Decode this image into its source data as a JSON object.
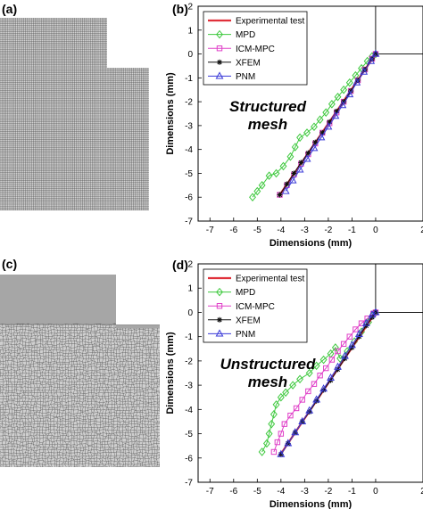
{
  "panel_labels": [
    "(a)",
    "(b)",
    "(c)",
    "(d)"
  ],
  "mesh_panels": [
    {
      "panel": "(a)",
      "type": "structured"
    },
    {
      "panel": "(c)",
      "type": "unstructured"
    }
  ],
  "colors": {
    "experimental": "#e0303a",
    "mpd": "#3fc93f",
    "icm_mpc": "#e040c8",
    "xfem": "#111111",
    "pnm": "#3a3ad8",
    "mesh_line": "#444444",
    "mesh_fill": "#c8c8c8"
  },
  "chart_data": [
    {
      "panel": "(b)",
      "type": "line",
      "annotation": "Structured mesh",
      "xlabel": "Dimensions (mm)",
      "ylabel": "Dimensions (mm)",
      "xlim": [
        -7.5,
        2
      ],
      "ylim": [
        -7,
        2
      ],
      "xticks": [
        "-7",
        "-6",
        "-5",
        "-4",
        "-3",
        "-2",
        "-1",
        "0",
        "2"
      ],
      "yticks": [
        "2",
        "1",
        "0",
        "-1",
        "-2",
        "-3",
        "-4",
        "-5",
        "-6",
        "-7"
      ],
      "legend_position": "top-left",
      "grid": false,
      "geometry_outline": {
        "x": [
          0,
          0,
          2
        ],
        "y": [
          2,
          0,
          0
        ]
      },
      "series": [
        {
          "name": "Experimental test",
          "marker": "none",
          "x": [
            -4.05,
            0.0
          ],
          "y": [
            -5.9,
            0.0
          ]
        },
        {
          "name": "MPD",
          "marker": "diamond",
          "x": [
            -5.2,
            -5.0,
            -4.8,
            -4.5,
            -4.2,
            -3.9,
            -3.6,
            -3.4,
            -3.2,
            -2.9,
            -2.6,
            -2.35,
            -2.1,
            -1.85,
            -1.6,
            -1.35,
            -1.1,
            -0.85,
            -0.6,
            -0.35,
            -0.15,
            0.0
          ],
          "y": [
            -6.0,
            -5.75,
            -5.5,
            -5.1,
            -5.0,
            -4.7,
            -4.3,
            -3.9,
            -3.5,
            -3.3,
            -3.05,
            -2.75,
            -2.45,
            -2.1,
            -1.8,
            -1.5,
            -1.2,
            -0.9,
            -0.6,
            -0.3,
            -0.1,
            0.0
          ]
        },
        {
          "name": "ICM-MPC",
          "marker": "square",
          "x": [
            -4.05,
            -3.75,
            -3.45,
            -3.15,
            -2.85,
            -2.55,
            -2.25,
            -1.95,
            -1.65,
            -1.35,
            -1.05,
            -0.75,
            -0.45,
            -0.15,
            0.0
          ],
          "y": [
            -5.9,
            -5.5,
            -5.05,
            -4.6,
            -4.2,
            -3.75,
            -3.3,
            -2.9,
            -2.45,
            -2.0,
            -1.55,
            -1.1,
            -0.65,
            -0.2,
            0.0
          ]
        },
        {
          "name": "XFEM",
          "marker": "star",
          "x": [
            -4.05,
            -3.75,
            -3.45,
            -3.15,
            -2.85,
            -2.55,
            -2.25,
            -1.95,
            -1.65,
            -1.35,
            -1.05,
            -0.75,
            -0.45,
            -0.15,
            0.0
          ],
          "y": [
            -5.9,
            -5.45,
            -5.0,
            -4.55,
            -4.15,
            -3.7,
            -3.3,
            -2.85,
            -2.4,
            -2.0,
            -1.55,
            -1.1,
            -0.65,
            -0.2,
            0.0
          ]
        },
        {
          "name": "PNM",
          "marker": "triangle",
          "x": [
            -3.8,
            -3.5,
            -3.2,
            -2.9,
            -2.6,
            -2.3,
            -2.0,
            -1.7,
            -1.4,
            -1.1,
            -0.8,
            -0.5,
            -0.2,
            0.0
          ],
          "y": [
            -5.75,
            -5.3,
            -4.85,
            -4.4,
            -3.95,
            -3.5,
            -3.05,
            -2.6,
            -2.15,
            -1.7,
            -1.2,
            -0.75,
            -0.3,
            0.0
          ]
        }
      ]
    },
    {
      "panel": "(d)",
      "type": "line",
      "annotation": "Unstructured mesh",
      "xlabel": "Dimensions (mm)",
      "ylabel": "Dimensions (mm)",
      "xlim": [
        -7.5,
        2
      ],
      "ylim": [
        -7,
        2
      ],
      "xticks": [
        "-7",
        "-6",
        "-5",
        "-4",
        "-3",
        "-2",
        "-1",
        "0",
        "2"
      ],
      "yticks": [
        "2",
        "1",
        "0",
        "-1",
        "-2",
        "-3",
        "-4",
        "-5",
        "-6",
        "-7"
      ],
      "legend_position": "top-left",
      "grid": false,
      "geometry_outline": {
        "x": [
          0,
          0,
          2
        ],
        "y": [
          2,
          0,
          0
        ]
      },
      "series": [
        {
          "name": "Experimental test",
          "marker": "none",
          "x": [
            -4.05,
            0.0
          ],
          "y": [
            -5.9,
            0.0
          ]
        },
        {
          "name": "MPD",
          "marker": "diamond",
          "x": [
            -4.8,
            -4.6,
            -4.5,
            -4.4,
            -4.3,
            -4.2,
            -4.0,
            -3.8,
            -3.5,
            -3.2,
            -2.8,
            -2.5,
            -2.2,
            -1.9,
            -1.7,
            -1.5,
            -1.2,
            -0.9,
            -0.6,
            -0.3,
            -0.1,
            0.0
          ],
          "y": [
            -5.75,
            -5.4,
            -5.0,
            -4.6,
            -4.2,
            -3.8,
            -3.5,
            -3.3,
            -3.0,
            -2.75,
            -2.5,
            -2.2,
            -1.95,
            -1.7,
            -1.45,
            -1.9,
            -1.6,
            -1.2,
            -0.8,
            -0.4,
            -0.1,
            0.0
          ]
        },
        {
          "name": "ICM-MPC",
          "marker": "square",
          "x": [
            -4.3,
            -4.15,
            -4.0,
            -3.85,
            -3.6,
            -3.35,
            -3.1,
            -2.85,
            -2.6,
            -2.35,
            -2.1,
            -1.85,
            -1.6,
            -1.35,
            -1.1,
            -0.85,
            -0.6,
            -0.35,
            -0.1,
            0.0
          ],
          "y": [
            -5.75,
            -5.35,
            -5.0,
            -4.6,
            -4.25,
            -3.95,
            -3.6,
            -3.25,
            -2.95,
            -2.6,
            -2.3,
            -1.95,
            -1.6,
            -1.3,
            -1.0,
            -0.7,
            -0.45,
            -0.25,
            -0.05,
            0.0
          ]
        },
        {
          "name": "XFEM",
          "marker": "star",
          "x": [
            -4.0,
            -3.7,
            -3.4,
            -3.1,
            -2.8,
            -2.5,
            -2.2,
            -1.9,
            -1.6,
            -1.3,
            -1.0,
            -0.7,
            -0.4,
            -0.15,
            0.0
          ],
          "y": [
            -5.85,
            -5.4,
            -4.95,
            -4.5,
            -4.1,
            -3.65,
            -3.2,
            -2.8,
            -2.35,
            -1.9,
            -1.45,
            -1.0,
            -0.55,
            -0.2,
            0.0
          ]
        },
        {
          "name": "PNM",
          "marker": "triangle",
          "x": [
            -4.0,
            -3.7,
            -3.4,
            -3.1,
            -2.8,
            -2.5,
            -2.2,
            -1.9,
            -1.6,
            -1.3,
            -1.0,
            -0.7,
            -0.4,
            -0.15,
            0.0
          ],
          "y": [
            -5.85,
            -5.4,
            -4.95,
            -4.5,
            -4.05,
            -3.6,
            -3.15,
            -2.7,
            -2.25,
            -1.8,
            -1.35,
            -0.9,
            -0.45,
            -0.1,
            0.0
          ]
        }
      ]
    }
  ]
}
